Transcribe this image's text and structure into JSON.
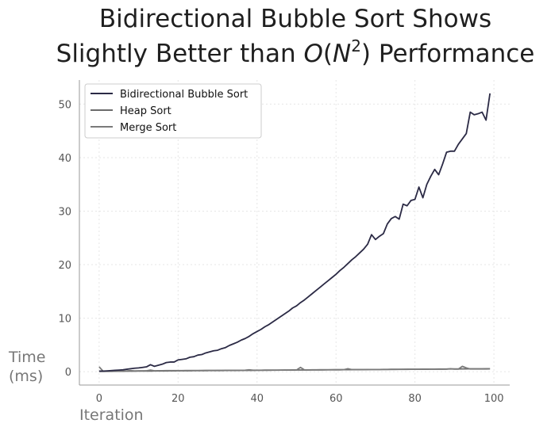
{
  "chart_data": {
    "type": "line",
    "title_line1": "Bidirectional Bubble Sort Shows",
    "title_line2_prefix": "Slightly Better than ",
    "title_math_O": "O",
    "title_math_open": "(",
    "title_math_N": "N",
    "title_math_exp": "2",
    "title_math_close": ")",
    "title_line2_suffix": " Performance",
    "xlabel": "Iteration",
    "ylabel_line1": "Time",
    "ylabel_line2": "(ms)",
    "xlim": [
      -5,
      104
    ],
    "ylim": [
      -2.5,
      54.5
    ],
    "xticks": [
      0,
      20,
      40,
      60,
      80,
      100
    ],
    "yticks": [
      0,
      10,
      20,
      30,
      40,
      50
    ],
    "xtick_labels": [
      "0",
      "20",
      "40",
      "60",
      "80",
      "100"
    ],
    "ytick_labels": [
      "0",
      "10",
      "20",
      "30",
      "40",
      "50"
    ],
    "grid": true,
    "legend_position": "top-left",
    "series": [
      {
        "name": "Bidirectional Bubble Sort",
        "color": "#2b2a45",
        "values": [
          0.1,
          0.1,
          0.15,
          0.2,
          0.25,
          0.3,
          0.35,
          0.45,
          0.55,
          0.65,
          0.7,
          0.8,
          0.9,
          1.3,
          1.0,
          1.2,
          1.4,
          1.7,
          1.8,
          1.8,
          2.2,
          2.3,
          2.4,
          2.7,
          2.8,
          3.1,
          3.2,
          3.5,
          3.7,
          3.9,
          4.0,
          4.3,
          4.5,
          4.9,
          5.2,
          5.5,
          5.9,
          6.2,
          6.6,
          7.1,
          7.5,
          7.9,
          8.4,
          8.8,
          9.3,
          9.8,
          10.3,
          10.8,
          11.3,
          11.9,
          12.3,
          12.9,
          13.4,
          14.0,
          14.6,
          15.2,
          15.8,
          16.4,
          17.0,
          17.6,
          18.2,
          18.9,
          19.5,
          20.2,
          20.9,
          21.5,
          22.2,
          22.9,
          23.8,
          25.6,
          24.7,
          25.3,
          25.8,
          27.6,
          28.6,
          29.0,
          28.5,
          31.3,
          31.0,
          32.0,
          32.2,
          34.5,
          32.5,
          35.0,
          36.5,
          37.8,
          36.8,
          38.8,
          41.0,
          41.2,
          41.2,
          42.5,
          43.5,
          44.5,
          48.5,
          48.0,
          48.2,
          48.5,
          47.0,
          52.0
        ]
      },
      {
        "name": "Heap Sort",
        "color": "#6b6b6b",
        "values": [
          0.05,
          0.05,
          0.06,
          0.06,
          0.07,
          0.08,
          0.08,
          0.09,
          0.1,
          0.1,
          0.11,
          0.11,
          0.12,
          0.12,
          0.13,
          0.13,
          0.14,
          0.14,
          0.15,
          0.15,
          0.16,
          0.16,
          0.17,
          0.17,
          0.18,
          0.18,
          0.19,
          0.19,
          0.2,
          0.2,
          0.21,
          0.21,
          0.22,
          0.22,
          0.23,
          0.23,
          0.24,
          0.24,
          0.25,
          0.25,
          0.26,
          0.26,
          0.27,
          0.27,
          0.28,
          0.28,
          0.29,
          0.29,
          0.3,
          0.3,
          0.31,
          0.31,
          0.32,
          0.32,
          0.33,
          0.33,
          0.34,
          0.34,
          0.35,
          0.35,
          0.36,
          0.36,
          0.37,
          0.37,
          0.38,
          0.38,
          0.39,
          0.39,
          0.4,
          0.4,
          0.41,
          0.41,
          0.42,
          0.42,
          0.43,
          0.43,
          0.44,
          0.44,
          0.45,
          0.45,
          0.46,
          0.46,
          0.47,
          0.47,
          0.48,
          0.48,
          0.49,
          0.49,
          0.5,
          0.5,
          0.51,
          0.51,
          0.52,
          0.52,
          0.53,
          0.53,
          0.54,
          0.54,
          0.55,
          0.55
        ]
      },
      {
        "name": "Merge Sort",
        "color": "#7a7a7a",
        "values": [
          0.9,
          0.1,
          0.1,
          0.1,
          0.12,
          0.12,
          0.13,
          0.14,
          0.2,
          0.15,
          0.16,
          0.16,
          0.17,
          0.3,
          0.17,
          0.18,
          0.18,
          0.19,
          0.19,
          0.2,
          0.2,
          0.2,
          0.21,
          0.21,
          0.22,
          0.22,
          0.22,
          0.23,
          0.23,
          0.24,
          0.24,
          0.24,
          0.25,
          0.25,
          0.26,
          0.26,
          0.26,
          0.27,
          0.35,
          0.28,
          0.28,
          0.28,
          0.29,
          0.29,
          0.3,
          0.3,
          0.3,
          0.31,
          0.31,
          0.32,
          0.32,
          0.8,
          0.33,
          0.33,
          0.34,
          0.34,
          0.34,
          0.35,
          0.35,
          0.36,
          0.36,
          0.36,
          0.37,
          0.55,
          0.38,
          0.38,
          0.38,
          0.39,
          0.39,
          0.4,
          0.4,
          0.4,
          0.41,
          0.41,
          0.42,
          0.42,
          0.42,
          0.43,
          0.43,
          0.44,
          0.44,
          0.44,
          0.45,
          0.45,
          0.46,
          0.46,
          0.46,
          0.47,
          0.47,
          0.55,
          0.48,
          0.48,
          1.0,
          0.7,
          0.5,
          0.5,
          0.5,
          0.51,
          0.51,
          0.52
        ]
      }
    ]
  }
}
